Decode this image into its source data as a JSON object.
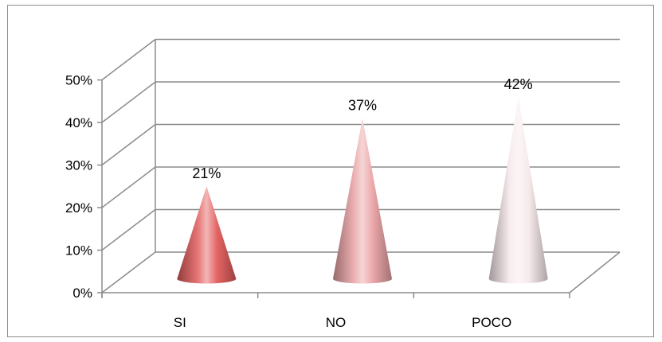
{
  "chart_data": {
    "type": "bar",
    "bar_shape": "cone",
    "style": "3d",
    "categories": [
      "SI",
      "NO",
      "POCO"
    ],
    "values": [
      0.21,
      0.37,
      0.42
    ],
    "data_labels": [
      "21%",
      "37%",
      "42%"
    ],
    "ylim": [
      0,
      0.5
    ],
    "yticks": [
      0,
      0.1,
      0.2,
      0.3,
      0.4,
      0.5
    ],
    "ytick_labels": [
      "0%",
      "10%",
      "20%",
      "30%",
      "40%",
      "50%"
    ],
    "grid": true,
    "legend": "none",
    "colors": {
      "SI": "#e15c5c",
      "NO": "#e9a1a3",
      "POCO": "#f6e9ea",
      "gridline": "#8c8c8c",
      "axis": "#8c8c8c"
    }
  }
}
